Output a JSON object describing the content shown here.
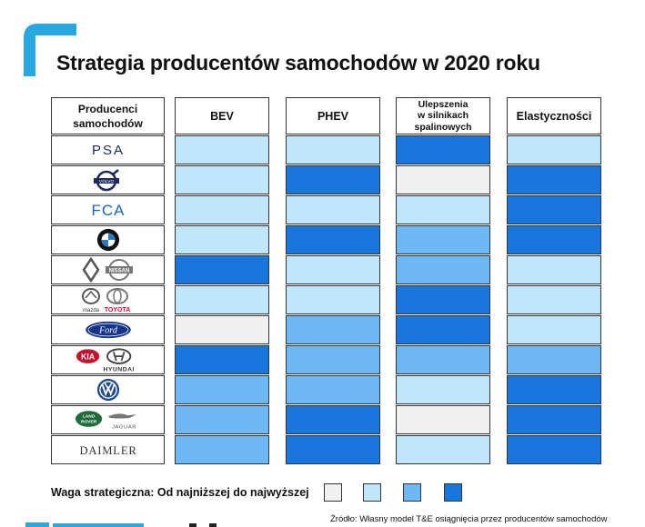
{
  "title": "Strategia producentów samochodów w 2020 roku",
  "colors": {
    "accent": "#29a8e0",
    "levels": [
      "#f0f0f0",
      "#bfe6fb",
      "#6db8f5",
      "#1976dc"
    ]
  },
  "headers": {
    "producers": [
      "Producenci",
      "samochodów"
    ],
    "columns": [
      [
        "BEV"
      ],
      [
        "PHEV"
      ],
      [
        "Ulepszenia",
        "w silnikach",
        "spalinowych"
      ],
      [
        "Elastyczności"
      ]
    ]
  },
  "chart_data": {
    "type": "heatmap",
    "title": "Strategia producentów samochodów w 2020 roku",
    "x": [
      "BEV",
      "PHEV",
      "Ulepszenia w silnikach spalinowych",
      "Elastyczności"
    ],
    "y": [
      "PSA",
      "VOLVO",
      "FCA",
      "BMW",
      "Renault Nissan",
      "mazda TOYOTA",
      "Ford",
      "KIA HYUNDAI",
      "VW",
      "LAND ROVER JAGUAR",
      "DAIMLER"
    ],
    "scale": [
      "najniższa",
      "niska",
      "wysoka",
      "najwyższa"
    ],
    "values": [
      [
        1,
        1,
        3,
        1
      ],
      [
        1,
        3,
        0,
        3
      ],
      [
        1,
        1,
        1,
        3
      ],
      [
        1,
        3,
        2,
        3
      ],
      [
        3,
        1,
        2,
        1
      ],
      [
        1,
        1,
        3,
        1
      ],
      [
        0,
        2,
        3,
        1
      ],
      [
        3,
        2,
        2,
        2
      ],
      [
        2,
        2,
        1,
        3
      ],
      [
        2,
        3,
        0,
        3
      ],
      [
        2,
        3,
        1,
        3
      ]
    ]
  },
  "brands": [
    {
      "icon": "psa-logo-icon",
      "texts": [
        "PSA"
      ]
    },
    {
      "icon": "volvo-logo-icon",
      "texts": [
        "VOLVO"
      ]
    },
    {
      "icon": "fca-logo-icon",
      "texts": [
        "FCA"
      ]
    },
    {
      "icon": "bmw-logo-icon",
      "texts": []
    },
    {
      "icon": "renault-nissan-logo-icon",
      "texts": [
        "NISSAN"
      ]
    },
    {
      "icon": "mazda-toyota-logo-icon",
      "texts": [
        "mazda",
        "TOYOTA"
      ]
    },
    {
      "icon": "ford-logo-icon",
      "texts": [
        "Ford"
      ]
    },
    {
      "icon": "kia-hyundai-logo-icon",
      "texts": [
        "KIA",
        "HYUNDAI"
      ]
    },
    {
      "icon": "vw-logo-icon",
      "texts": []
    },
    {
      "icon": "land-rover-jaguar-logo-icon",
      "texts": [
        "LAND",
        "ROVER",
        "JAGUAR"
      ]
    },
    {
      "icon": "daimler-logo-icon",
      "texts": [
        "DAIMLER"
      ]
    }
  ],
  "legend": {
    "label": "Waga strategiczna: Od najniższej do najwyższej"
  },
  "source": "Źródło: Własny model T&E osiągnięcia przez producentów samochodów"
}
